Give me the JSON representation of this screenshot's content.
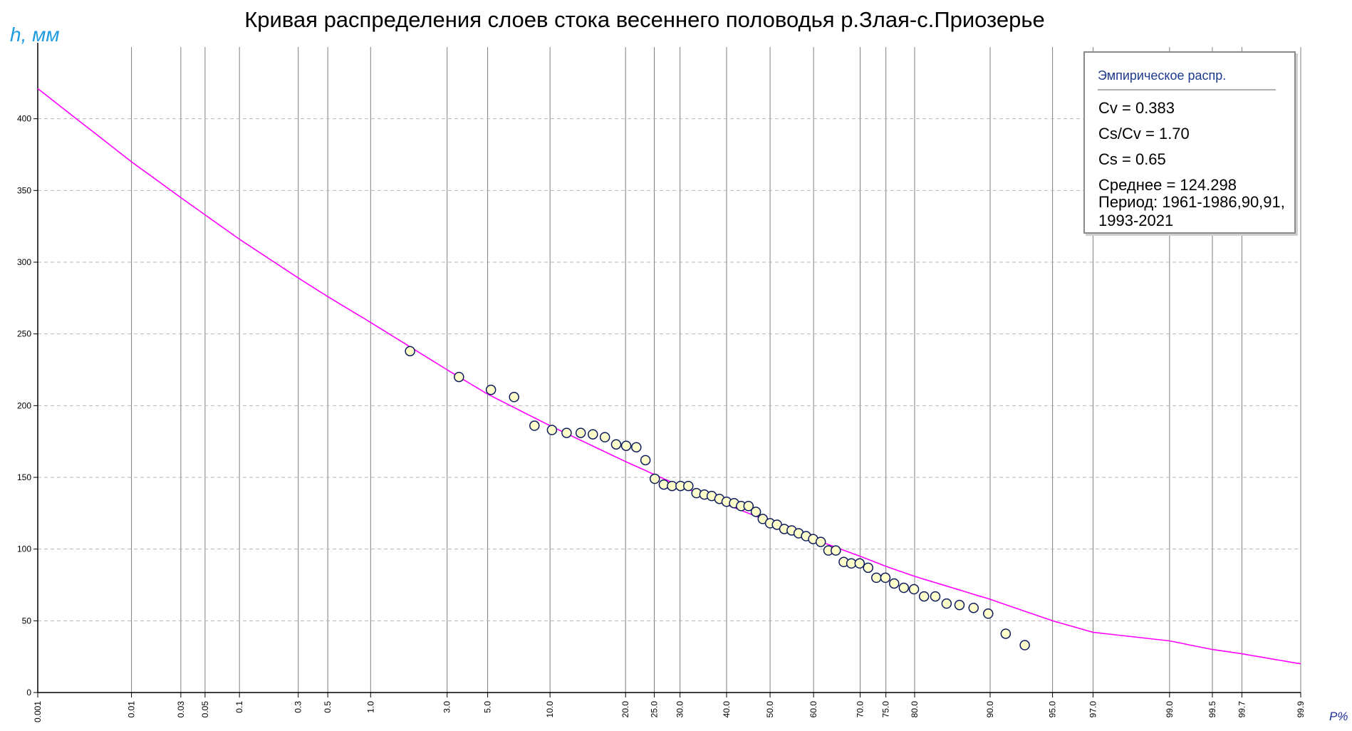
{
  "chart_data": {
    "type": "scatter",
    "title": "Кривая распределения слоев стока весеннего половодья р.Злая-с.Приозерье",
    "ylabel": "h, мм",
    "xlabel": "P%",
    "x_scale": "probability",
    "ylim": [
      0,
      450
    ],
    "y_ticks": [
      0,
      50,
      100,
      150,
      200,
      250,
      300,
      350,
      400
    ],
    "y_tick_labels": [
      "0",
      "50",
      "100",
      "150",
      "200",
      "250",
      "300",
      "350",
      "400"
    ],
    "x_ticks": [
      0.001,
      0.01,
      0.03,
      0.05,
      0.1,
      0.3,
      0.5,
      1,
      3,
      5,
      10,
      20,
      25,
      30,
      40,
      50,
      60,
      70,
      75,
      80,
      90,
      95,
      97,
      99,
      99.5,
      99.7,
      99.9
    ],
    "x_tick_labels": [
      "0.001",
      "0.01",
      "0.03",
      "0.05",
      "0.1",
      "0.3",
      "0.5",
      "1.0",
      "3.0",
      "5.0",
      "10.0",
      "20.0",
      "25.0",
      "30.0",
      "40.0",
      "50.0",
      "60.0",
      "70.0",
      "75.0",
      "80.0",
      "90.0",
      "95.0",
      "97.0",
      "99.0",
      "99.5",
      "99.7",
      "99.9"
    ],
    "grid": {
      "x": "solid",
      "y": "dashed"
    },
    "legend_position": "top-right",
    "series": [
      {
        "type": "line",
        "color": "#ff00ff",
        "points": [
          [
            0.001,
            421
          ],
          [
            0.01,
            370
          ],
          [
            0.03,
            345
          ],
          [
            0.05,
            333
          ],
          [
            0.1,
            316
          ],
          [
            0.3,
            289
          ],
          [
            0.5,
            276
          ],
          [
            1,
            258
          ],
          [
            3,
            225
          ],
          [
            5,
            208
          ],
          [
            10,
            186
          ],
          [
            20,
            161
          ],
          [
            25,
            152
          ],
          [
            30,
            144
          ],
          [
            40,
            131
          ],
          [
            50,
            119
          ],
          [
            60,
            107
          ],
          [
            70,
            95
          ],
          [
            75,
            88
          ],
          [
            80,
            81
          ],
          [
            90,
            65
          ],
          [
            95,
            50
          ],
          [
            97,
            42
          ],
          [
            99,
            36
          ],
          [
            99.5,
            30
          ],
          [
            99.7,
            27
          ],
          [
            99.9,
            20
          ]
        ]
      },
      {
        "type": "scatter",
        "marker_fill": "#ffffcc",
        "marker_stroke": "#0d1b5e",
        "points": [
          [
            1.8,
            238
          ],
          [
            3.5,
            220
          ],
          [
            5.2,
            211
          ],
          [
            6.8,
            206
          ],
          [
            8.5,
            186
          ],
          [
            10.2,
            183
          ],
          [
            11.8,
            181
          ],
          [
            13.5,
            181
          ],
          [
            15.1,
            180
          ],
          [
            16.8,
            178
          ],
          [
            18.5,
            173
          ],
          [
            20.1,
            172
          ],
          [
            21.8,
            171
          ],
          [
            23.4,
            162
          ],
          [
            25.1,
            149
          ],
          [
            26.8,
            145
          ],
          [
            28.4,
            144
          ],
          [
            30.1,
            144
          ],
          [
            31.7,
            144
          ],
          [
            33.4,
            139
          ],
          [
            35.1,
            138
          ],
          [
            36.7,
            137
          ],
          [
            38.4,
            135
          ],
          [
            40.0,
            133
          ],
          [
            41.7,
            132
          ],
          [
            43.3,
            130
          ],
          [
            45.0,
            130
          ],
          [
            46.7,
            126
          ],
          [
            48.3,
            121
          ],
          [
            50.0,
            118
          ],
          [
            51.6,
            117
          ],
          [
            53.3,
            114
          ],
          [
            55.0,
            113
          ],
          [
            56.6,
            111
          ],
          [
            58.3,
            109
          ],
          [
            59.9,
            107
          ],
          [
            61.6,
            105
          ],
          [
            63.3,
            99
          ],
          [
            64.9,
            99
          ],
          [
            66.6,
            91
          ],
          [
            68.2,
            90
          ],
          [
            69.9,
            90
          ],
          [
            71.6,
            87
          ],
          [
            73.2,
            80
          ],
          [
            74.9,
            80
          ],
          [
            76.5,
            76
          ],
          [
            78.2,
            73
          ],
          [
            79.9,
            72
          ],
          [
            81.5,
            67
          ],
          [
            83.2,
            67
          ],
          [
            84.8,
            62
          ],
          [
            86.5,
            61
          ],
          [
            88.2,
            59
          ],
          [
            89.8,
            55
          ],
          [
            91.5,
            41
          ],
          [
            93.1,
            33
          ]
        ]
      }
    ]
  },
  "legend": {
    "header": "Эмпирическое распр.",
    "lines": [
      "Cv = 0.383",
      "Cs/Cv = 1.70",
      "Cs = 0.65",
      "Среднее = 124.298",
      "Период: 1961-1986,90,91,",
      "1993-2021"
    ]
  },
  "colors": {
    "curve": "#ff00ff",
    "marker_fill": "#ffffcc",
    "marker_stroke": "#0d1b5e",
    "grid_v": "#7f7f7f",
    "grid_h": "#b5b5b5",
    "ylabel": "#1e9be0",
    "xlabel": "#1f2f9c"
  }
}
